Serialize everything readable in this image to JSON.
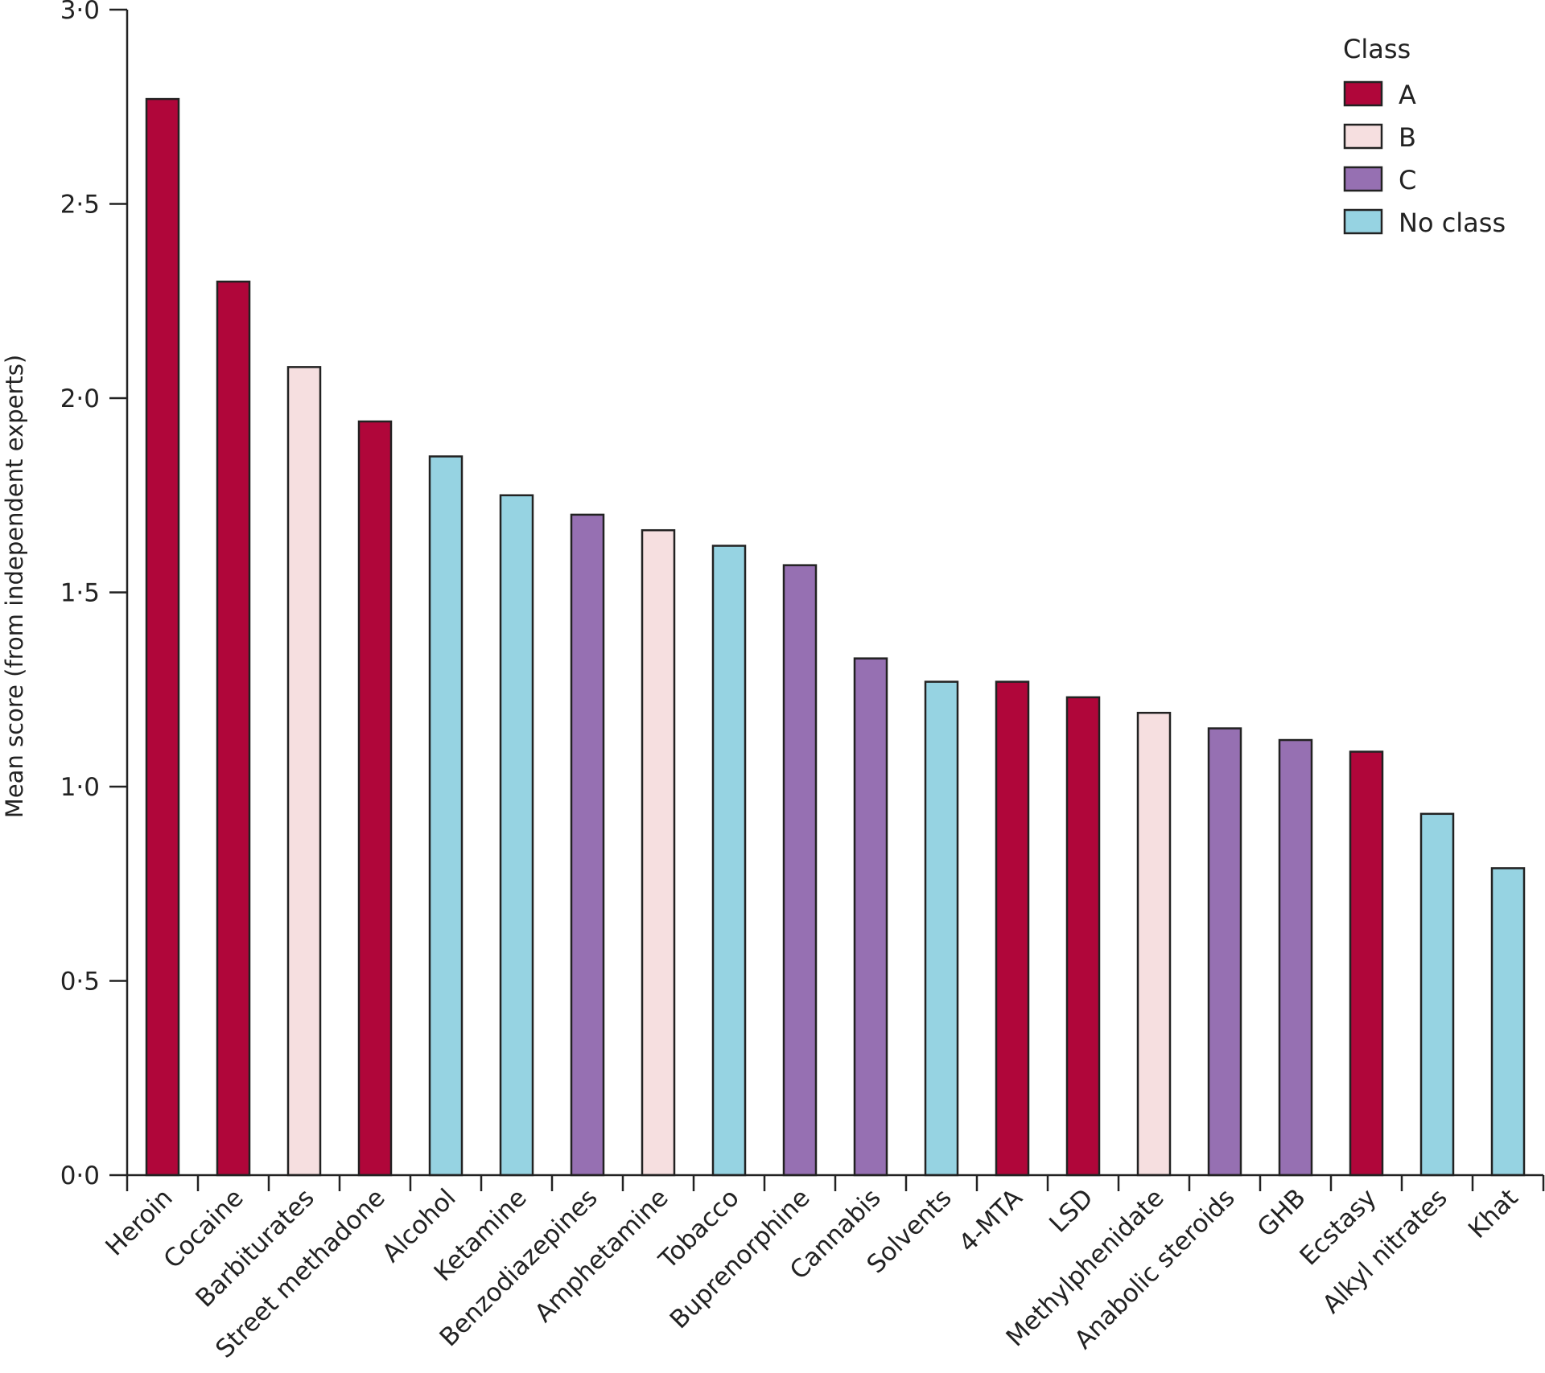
{
  "chart_data": {
    "type": "bar",
    "title": "",
    "xlabel": "",
    "ylabel": "Mean score (from independent experts)",
    "ylim": [
      0,
      3
    ],
    "yticks": [
      "0·0",
      "0·5",
      "1·0",
      "1·5",
      "2·0",
      "2·5",
      "3·0"
    ],
    "ytick_values": [
      0,
      0.5,
      1,
      1.5,
      2,
      2.5,
      3
    ],
    "grid": false,
    "legend": {
      "title": "Class",
      "position": "top-right",
      "entries": [
        {
          "label": "A",
          "color": "#b0063a"
        },
        {
          "label": "B",
          "color": "#f6dfe0"
        },
        {
          "label": "C",
          "color": "#9670b2"
        },
        {
          "label": "No class",
          "color": "#96d3e2"
        }
      ]
    },
    "categories": [
      "Heroin",
      "Cocaine",
      "Barbiturates",
      "Street methadone",
      "Alcohol",
      "Ketamine",
      "Benzodiazepines",
      "Amphetamine",
      "Tobacco",
      "Buprenorphine",
      "Cannabis",
      "Solvents",
      "4-MTA",
      "LSD",
      "Methylphenidate",
      "Anabolic steroids",
      "GHB",
      "Ecstasy",
      "Alkyl nitrates",
      "Khat"
    ],
    "values": [
      2.77,
      2.3,
      2.08,
      1.94,
      1.85,
      1.75,
      1.7,
      1.66,
      1.62,
      1.57,
      1.33,
      1.27,
      1.27,
      1.23,
      1.19,
      1.15,
      1.12,
      1.09,
      0.93,
      0.79
    ],
    "classes": [
      "A",
      "A",
      "B",
      "A",
      "No class",
      "No class",
      "C",
      "B",
      "No class",
      "C",
      "C",
      "No class",
      "A",
      "A",
      "B",
      "C",
      "C",
      "A",
      "No class",
      "No class"
    ]
  }
}
